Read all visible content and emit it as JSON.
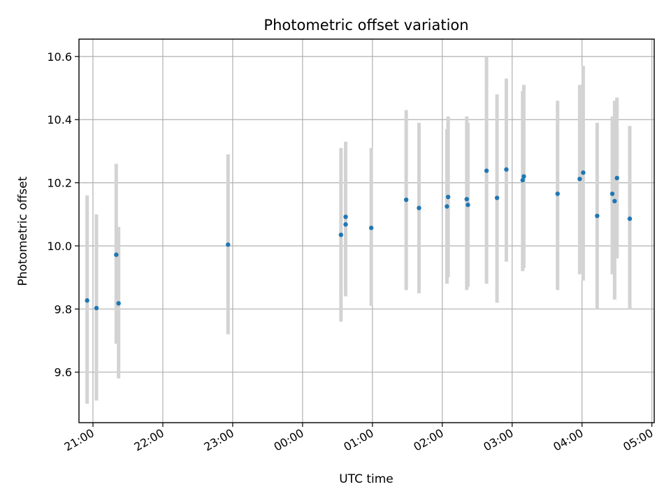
{
  "chart_data": {
    "type": "scatter",
    "title": "Photometric offset variation",
    "xlabel": "UTC time",
    "ylabel": "Photometric offset",
    "x_unit": "time (hh:mm), night spanning midnight",
    "xlim": [
      "20:48",
      "05:02"
    ],
    "ylim": [
      9.44,
      10.655
    ],
    "x_ticks": [
      "21:00",
      "22:00",
      "23:00",
      "00:00",
      "01:00",
      "02:00",
      "03:00",
      "04:00",
      "05:00"
    ],
    "y_ticks": [
      9.6,
      9.8,
      10.0,
      10.2,
      10.4,
      10.6
    ],
    "grid": true,
    "colors": {
      "points": "#1f77b4",
      "errorbars": "#d3d3d3"
    },
    "series": [
      {
        "points": [
          {
            "x": "20:55",
            "y": 9.827,
            "ylow": 9.5,
            "yhigh": 10.16
          },
          {
            "x": "21:03",
            "y": 9.803,
            "ylow": 9.51,
            "yhigh": 10.1
          },
          {
            "x": "21:20",
            "y": 9.972,
            "ylow": 9.69,
            "yhigh": 10.26
          },
          {
            "x": "21:22",
            "y": 9.818,
            "ylow": 9.58,
            "yhigh": 10.06
          },
          {
            "x": "22:56",
            "y": 10.004,
            "ylow": 9.72,
            "yhigh": 10.29
          },
          {
            "x": "00:33",
            "y": 10.035,
            "ylow": 9.76,
            "yhigh": 10.31
          },
          {
            "x": "00:37",
            "y": 10.092,
            "ylow": 9.86,
            "yhigh": 10.33
          },
          {
            "x": "00:37",
            "y": 10.068,
            "ylow": 9.84,
            "yhigh": 10.3
          },
          {
            "x": "00:59",
            "y": 10.057,
            "ylow": 9.81,
            "yhigh": 10.31
          },
          {
            "x": "01:29",
            "y": 10.146,
            "ylow": 9.86,
            "yhigh": 10.43
          },
          {
            "x": "01:40",
            "y": 10.12,
            "ylow": 9.85,
            "yhigh": 10.39
          },
          {
            "x": "02:04",
            "y": 10.125,
            "ylow": 9.88,
            "yhigh": 10.37
          },
          {
            "x": "02:05",
            "y": 10.155,
            "ylow": 9.9,
            "yhigh": 10.41
          },
          {
            "x": "02:21",
            "y": 10.148,
            "ylow": 9.86,
            "yhigh": 10.41
          },
          {
            "x": "02:22",
            "y": 10.13,
            "ylow": 9.87,
            "yhigh": 10.39
          },
          {
            "x": "02:38",
            "y": 10.238,
            "ylow": 9.88,
            "yhigh": 10.6
          },
          {
            "x": "02:47",
            "y": 10.152,
            "ylow": 9.82,
            "yhigh": 10.48
          },
          {
            "x": "02:55",
            "y": 10.242,
            "ylow": 9.95,
            "yhigh": 10.53
          },
          {
            "x": "03:09",
            "y": 10.208,
            "ylow": 9.92,
            "yhigh": 10.49
          },
          {
            "x": "03:10",
            "y": 10.22,
            "ylow": 9.93,
            "yhigh": 10.51
          },
          {
            "x": "03:39",
            "y": 10.165,
            "ylow": 9.86,
            "yhigh": 10.46
          },
          {
            "x": "03:58",
            "y": 10.212,
            "ylow": 9.91,
            "yhigh": 10.51
          },
          {
            "x": "04:01",
            "y": 10.232,
            "ylow": 9.89,
            "yhigh": 10.57
          },
          {
            "x": "04:13",
            "y": 10.095,
            "ylow": 9.8,
            "yhigh": 10.39
          },
          {
            "x": "04:26",
            "y": 10.165,
            "ylow": 9.91,
            "yhigh": 10.41
          },
          {
            "x": "04:28",
            "y": 10.142,
            "ylow": 9.83,
            "yhigh": 10.46
          },
          {
            "x": "04:30",
            "y": 10.215,
            "ylow": 9.96,
            "yhigh": 10.47
          },
          {
            "x": "04:41",
            "y": 10.086,
            "ylow": 9.8,
            "yhigh": 10.38
          }
        ]
      }
    ]
  }
}
